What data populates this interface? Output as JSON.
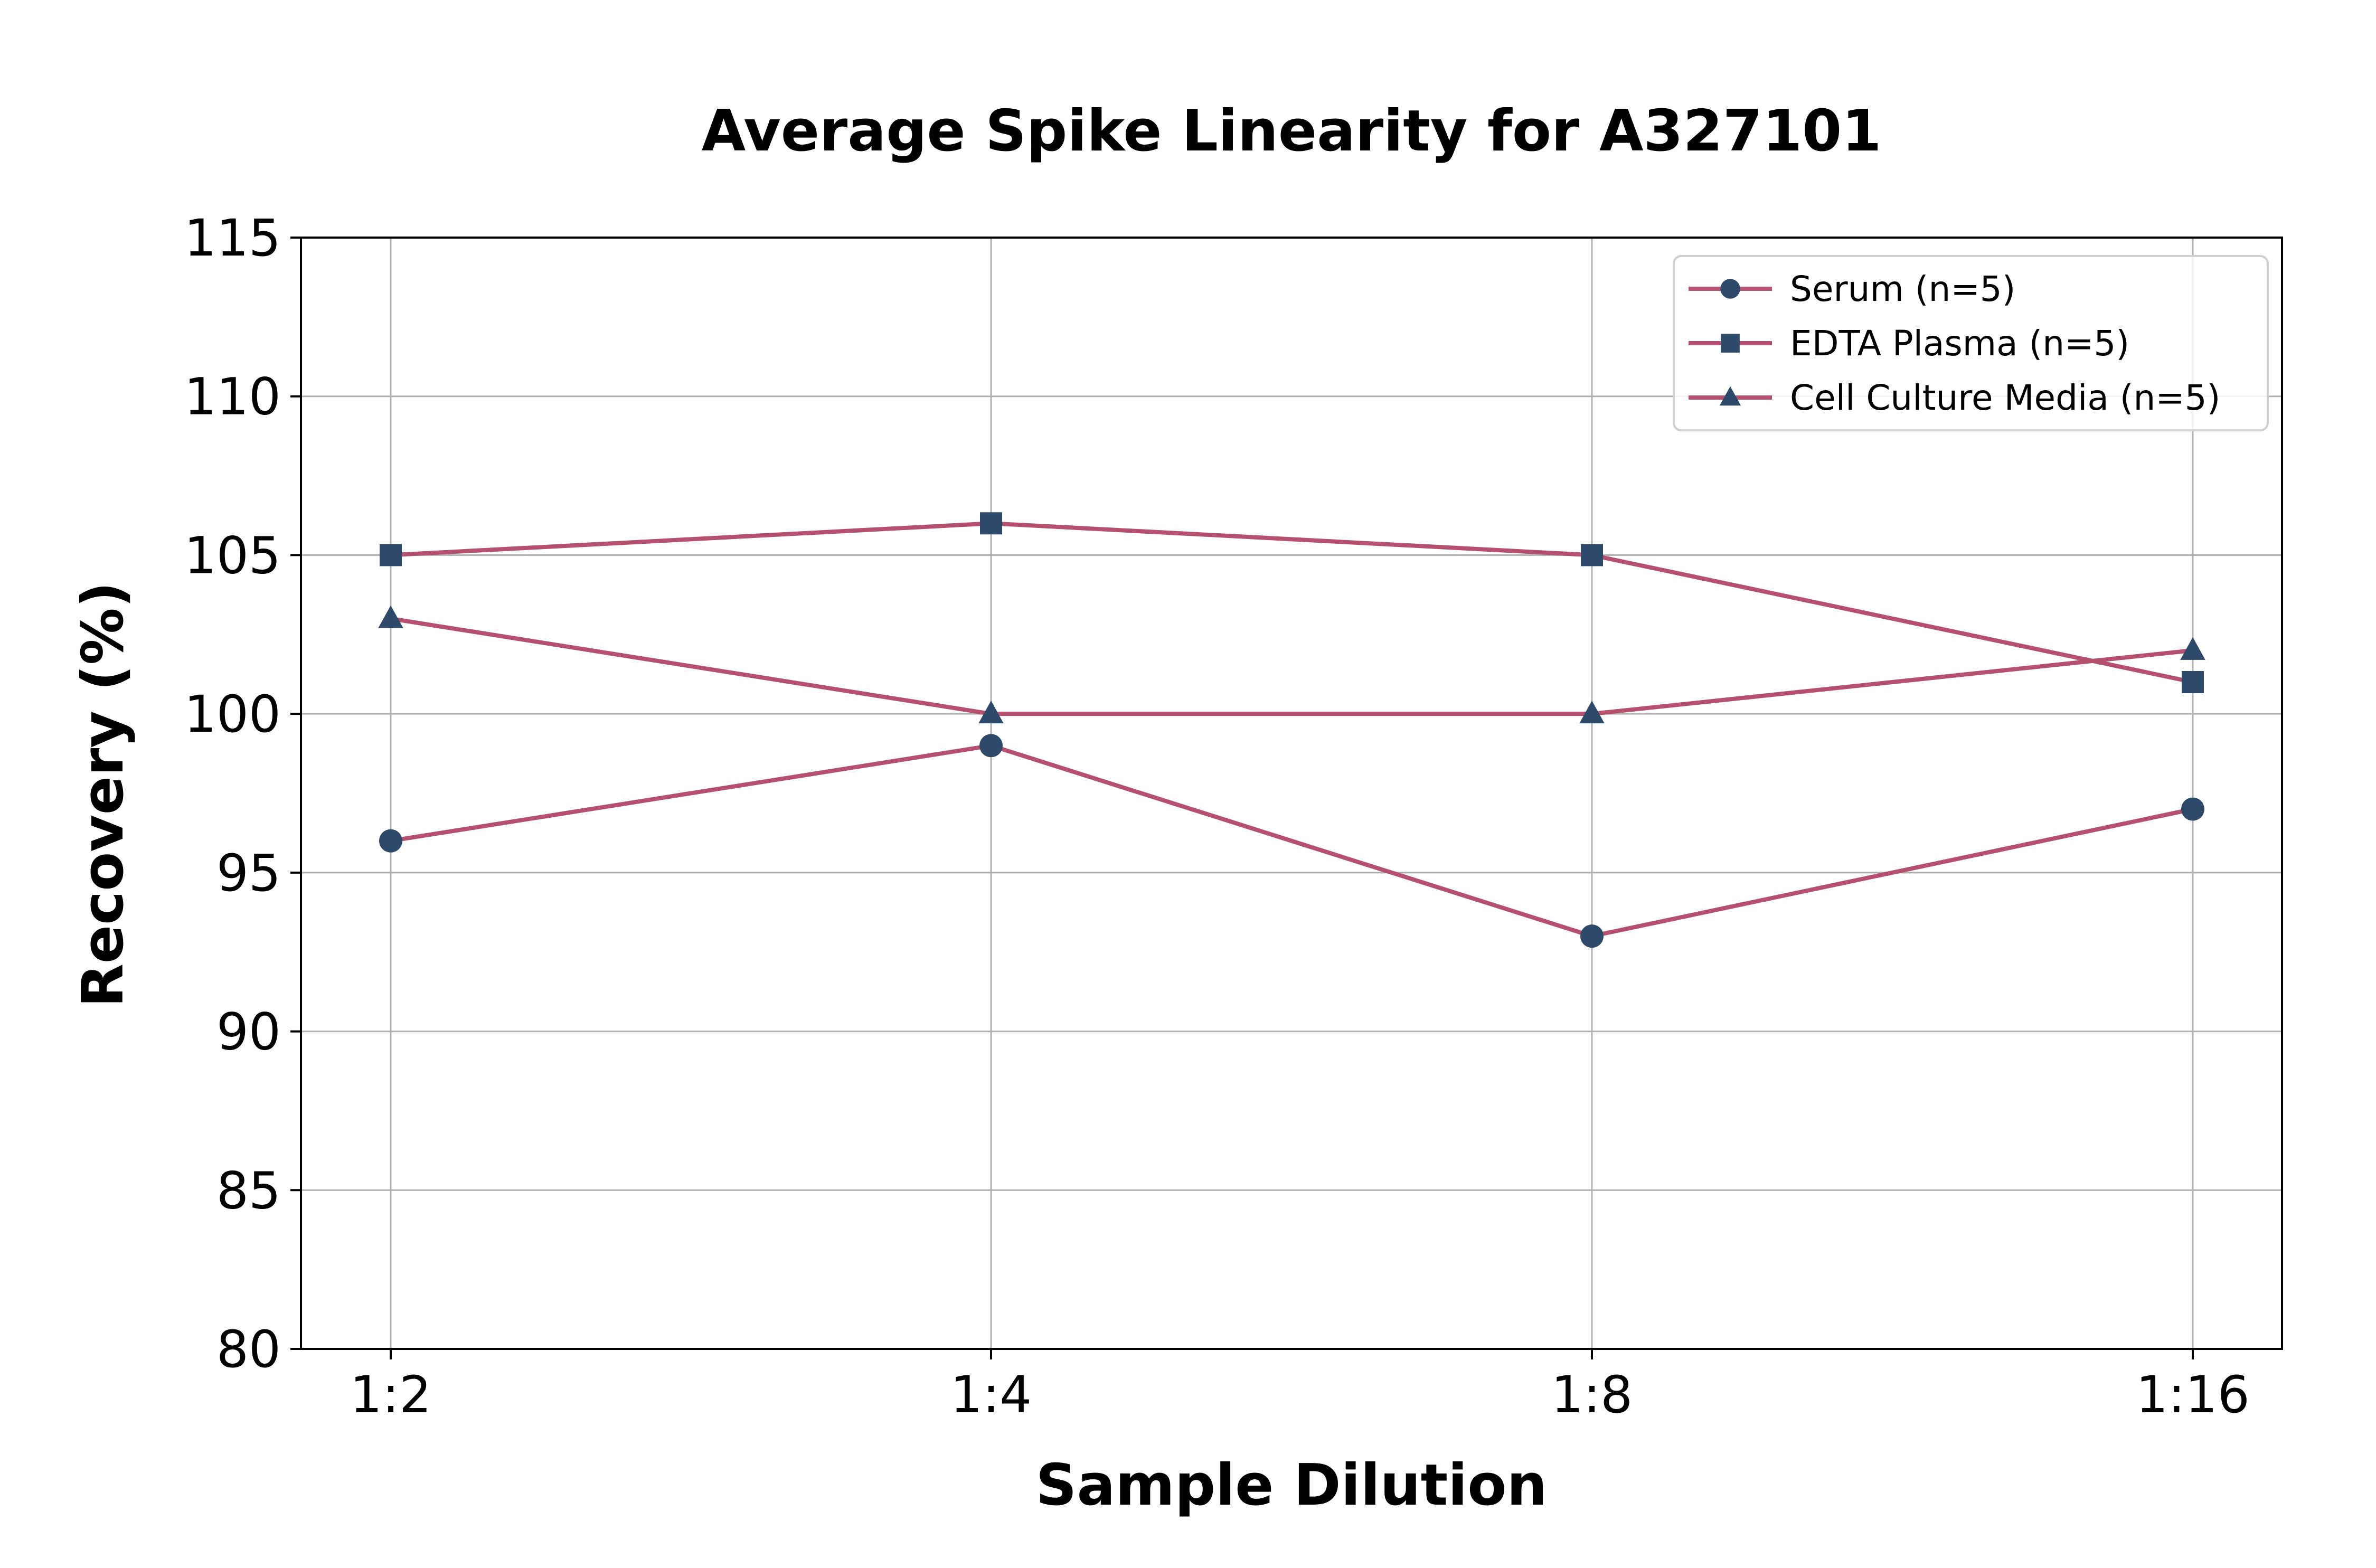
{
  "chart_data": {
    "type": "line",
    "title": "Average Spike Linearity for A327101",
    "xlabel": "Sample Dilution",
    "ylabel": "Recovery (%)",
    "categories": [
      "1:2",
      "1:4",
      "1:8",
      "1:16"
    ],
    "ylim": [
      80,
      115
    ],
    "yticks": [
      80,
      85,
      90,
      95,
      100,
      105,
      110,
      115
    ],
    "grid": true,
    "legend_position": "top-right",
    "line_color": "#b5506f",
    "marker_color": "#2d4a6b",
    "series": [
      {
        "name": "Serum (n=5)",
        "marker": "circle",
        "values": [
          96,
          99,
          93,
          97
        ]
      },
      {
        "name": "EDTA Plasma (n=5)",
        "marker": "square",
        "values": [
          105,
          106,
          105,
          101
        ]
      },
      {
        "name": "Cell Culture Media (n=5)",
        "marker": "triangle",
        "values": [
          103,
          100,
          100,
          102
        ]
      }
    ]
  }
}
